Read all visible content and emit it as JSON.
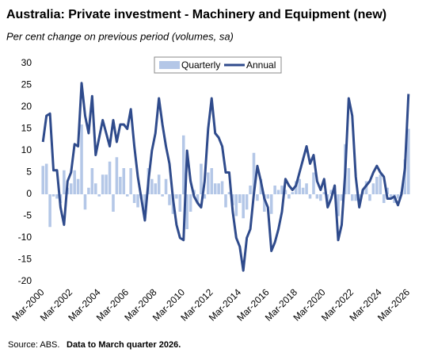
{
  "chart_data": {
    "type": "combo",
    "title": "Australia: Private investment - Machinery and Equipment (new)",
    "subtitle": "Per cent change on previous period (volumes, sa)",
    "source": "Source:  ABS.",
    "note": "Data to March quarter 2026.",
    "categories": [
      "Mar-2000",
      null,
      null,
      null,
      null,
      null,
      null,
      null,
      "Mar-2002",
      null,
      null,
      null,
      null,
      null,
      null,
      null,
      "Mar-2004",
      null,
      null,
      null,
      null,
      null,
      null,
      null,
      "Mar-2006",
      null,
      null,
      null,
      null,
      null,
      null,
      null,
      "Mar-2008",
      null,
      null,
      null,
      null,
      null,
      null,
      null,
      "Mar-2010",
      null,
      null,
      null,
      null,
      null,
      null,
      null,
      "Mar-2012",
      null,
      null,
      null,
      null,
      null,
      null,
      null,
      "Mar-2014",
      null,
      null,
      null,
      null,
      null,
      null,
      null,
      "Mar-2016",
      null,
      null,
      null,
      null,
      null,
      null,
      null,
      "Mar-2018",
      null,
      null,
      null,
      null,
      null,
      null,
      null,
      "Mar-2020",
      null,
      null,
      null,
      null,
      null,
      null,
      null,
      "Mar-2022",
      null,
      null,
      null,
      null,
      null,
      null,
      null,
      "Mar-2024",
      null,
      null,
      null,
      null,
      null,
      null,
      null,
      "Mar-2026"
    ],
    "series": [
      {
        "name": "Quarterly",
        "type": "bar",
        "color": "#b4c7e7",
        "values": [
          6.5,
          7,
          -7.5,
          -0.5,
          -1,
          -2,
          5.5,
          1.5,
          2.5,
          5.5,
          3.5,
          16,
          -3.5,
          1.5,
          6,
          2.5,
          -0.5,
          4.5,
          4.5,
          7.5,
          -4,
          8.5,
          4,
          6,
          -0.5,
          6,
          -2,
          -3,
          -1,
          -5.5,
          6,
          3.5,
          2.5,
          4.5,
          -0.5,
          3.5,
          -2.5,
          -4.5,
          -1,
          -4,
          13.5,
          -8,
          -4,
          1,
          -2,
          7,
          -1,
          5,
          6,
          2.5,
          2.5,
          3,
          -3,
          0.5,
          -2.5,
          -5,
          -2,
          -5.5,
          -3.5,
          2,
          9.5,
          -1.5,
          3.5,
          -4,
          -1,
          -4.5,
          2,
          1,
          2,
          1,
          -1,
          0.5,
          3,
          3.5,
          1.5,
          2.5,
          -1,
          5,
          -1,
          -1.5,
          0.5,
          -2,
          1,
          2,
          -5,
          -1.5,
          11.5,
          6,
          -1.5,
          -1.5,
          -2,
          1,
          3,
          -1.5,
          2.5,
          4,
          4.5,
          -2,
          1.5,
          -1,
          -2,
          -1,
          0.5,
          8,
          15
        ]
      },
      {
        "name": "Annual",
        "type": "line",
        "color": "#2f4b8c",
        "values": [
          12,
          18,
          18.5,
          5.5,
          5.5,
          -3,
          -7,
          3,
          5,
          11.5,
          11,
          25.5,
          18,
          14,
          22.5,
          9,
          13,
          17,
          14,
          11,
          17,
          12,
          16,
          16,
          15,
          19.5,
          11,
          4,
          -1,
          -6,
          3,
          10,
          14,
          22,
          16,
          11,
          7,
          -1,
          -7,
          -10,
          -10.5,
          10,
          3,
          -0.5,
          -2,
          -3,
          3,
          15,
          22,
          14,
          13,
          11,
          5,
          5,
          -4,
          -10,
          -12,
          -17.5,
          -10,
          -8,
          0,
          6.5,
          3,
          -1,
          -3,
          -13,
          -11,
          -8,
          -4,
          3.5,
          2,
          1,
          2,
          5,
          8,
          11,
          7,
          9,
          3,
          1,
          3.5,
          -3,
          -1,
          2,
          -10.5,
          -7,
          5,
          22,
          18,
          4,
          -3,
          1,
          2,
          3,
          5,
          6.5,
          5,
          4,
          -1,
          -1,
          -0.5,
          -2.5,
          0,
          6,
          23
        ]
      }
    ],
    "ylim": [
      -20,
      30
    ],
    "yticks": [
      -20,
      -15,
      -10,
      -5,
      0,
      5,
      10,
      15,
      20,
      25,
      30
    ],
    "grid": false,
    "legend": "top"
  }
}
